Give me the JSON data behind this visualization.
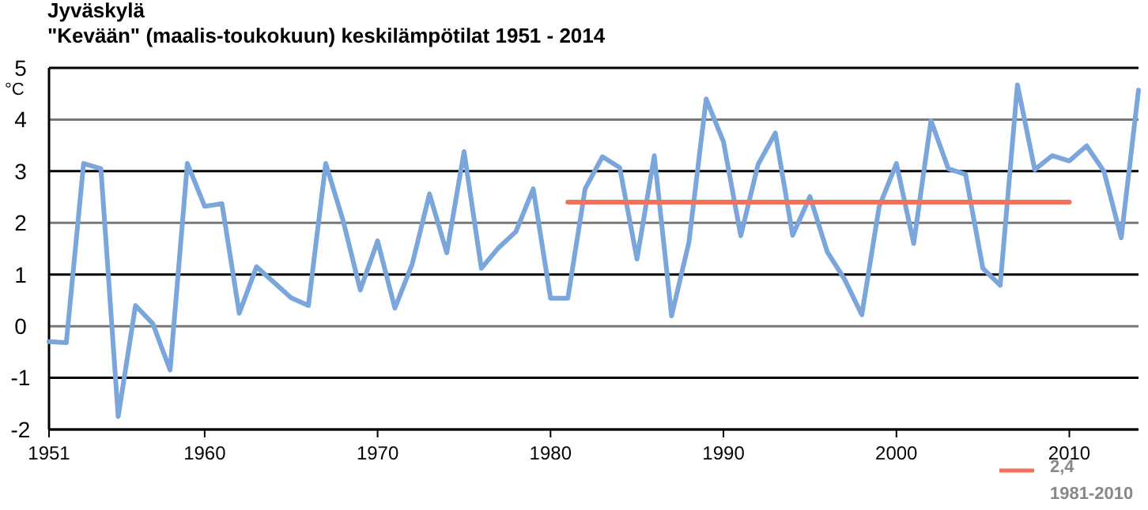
{
  "chart_data": {
    "type": "line",
    "title": "Jyväskylä",
    "subtitle": "\"Kevään\" (maalis-toukokuun) keskilämpötilat 1951 - 2014",
    "ylabel": "°C",
    "xlim": [
      1951,
      2014
    ],
    "xticks": [
      1951,
      1960,
      1970,
      1980,
      1990,
      2000,
      2010
    ],
    "ylim": [
      -2,
      5
    ],
    "yticks": [
      -2,
      -1,
      0,
      1,
      2,
      3,
      4,
      5
    ],
    "grid": "y",
    "legend": "bottom right",
    "marker": "none",
    "line_style": "solid",
    "annotations": [
      "1981-2010"
    ],
    "series": [
      {
        "color": "#7aa6dc",
        "x": [
          1951,
          1952,
          1953,
          1954,
          1955,
          1956,
          1957,
          1958,
          1959,
          1960,
          1961,
          1962,
          1963,
          1964,
          1965,
          1966,
          1967,
          1968,
          1969,
          1970,
          1971,
          1972,
          1973,
          1974,
          1975,
          1976,
          1977,
          1978,
          1979,
          1980,
          1981,
          1982,
          1983,
          1984,
          1985,
          1986,
          1987,
          1988,
          1989,
          1990,
          1991,
          1992,
          1993,
          1994,
          1995,
          1996,
          1997,
          1998,
          1999,
          2000,
          2001,
          2002,
          2003,
          2004,
          2005,
          2006,
          2007,
          2008,
          2009,
          2010,
          2011,
          2012,
          2013,
          2014
        ],
        "values": [
          -0.3,
          -0.32,
          3.15,
          3.05,
          -1.75,
          0.4,
          0.05,
          -0.85,
          3.15,
          2.32,
          2.37,
          0.25,
          1.15,
          0.85,
          0.55,
          0.4,
          3.15,
          2.05,
          0.7,
          1.65,
          0.35,
          1.2,
          2.56,
          1.42,
          3.38,
          1.12,
          1.52,
          1.83,
          2.66,
          0.54,
          0.54,
          2.66,
          3.28,
          3.07,
          1.3,
          3.3,
          0.2,
          1.62,
          4.4,
          3.57,
          1.75,
          3.13,
          3.74,
          1.76,
          2.51,
          1.44,
          0.91,
          0.22,
          2.31,
          3.15,
          1.6,
          3.98,
          3.05,
          2.94,
          1.12,
          0.79,
          4.67,
          3.03,
          3.3,
          3.2,
          3.49,
          3.0,
          1.71,
          4.57
        ]
      },
      {
        "name": "2,4",
        "color": "#f0725a",
        "x": [
          1981,
          2010
        ],
        "values": [
          2.4,
          2.4
        ]
      }
    ]
  }
}
